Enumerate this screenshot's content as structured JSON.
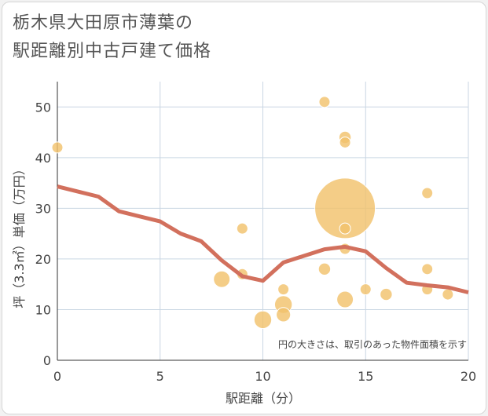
{
  "title_lines": [
    "栃木県大田原市薄葉の",
    "駅距離別中古戸建て価格"
  ],
  "chart_data": {
    "type": "scatter",
    "title": "栃木県大田原市薄葉の駅距離別中古戸建て価格",
    "xlabel": "駅距離（分）",
    "ylabel": "坪（3.3㎡）単価（万円）",
    "xlim": [
      0,
      20
    ],
    "ylim": [
      0,
      55
    ],
    "x_ticks": [
      0,
      5,
      10,
      15,
      20
    ],
    "y_ticks": [
      0,
      10,
      20,
      30,
      40,
      50
    ],
    "grid": true,
    "annotation": "円の大きさは、取引のあった物件面積を示す",
    "colors": {
      "points": "#f2c26d",
      "trend": "#d2705d",
      "grid": "#c9d6e3",
      "axis_text": "#444444"
    },
    "points": [
      {
        "x": 0,
        "y": 42,
        "size": 1
      },
      {
        "x": 8,
        "y": 16,
        "size": 1.5
      },
      {
        "x": 9,
        "y": 26,
        "size": 1
      },
      {
        "x": 9,
        "y": 17,
        "size": 1
      },
      {
        "x": 10,
        "y": 8,
        "size": 1.6
      },
      {
        "x": 11,
        "y": 14,
        "size": 1
      },
      {
        "x": 11,
        "y": 11,
        "size": 1.6
      },
      {
        "x": 11,
        "y": 9,
        "size": 1.3
      },
      {
        "x": 13,
        "y": 51,
        "size": 1
      },
      {
        "x": 13,
        "y": 18,
        "size": 1.1
      },
      {
        "x": 14,
        "y": 44,
        "size": 1.1
      },
      {
        "x": 14,
        "y": 43,
        "size": 1
      },
      {
        "x": 14,
        "y": 30,
        "size": 5.5
      },
      {
        "x": 14,
        "y": 26,
        "size": 1
      },
      {
        "x": 14,
        "y": 22,
        "size": 1
      },
      {
        "x": 14,
        "y": 12,
        "size": 1.5
      },
      {
        "x": 15,
        "y": 14,
        "size": 1
      },
      {
        "x": 16,
        "y": 13,
        "size": 1.1
      },
      {
        "x": 18,
        "y": 33,
        "size": 1
      },
      {
        "x": 18,
        "y": 18,
        "size": 1
      },
      {
        "x": 18,
        "y": 14,
        "size": 1
      },
      {
        "x": 19,
        "y": 13,
        "size": 1
      }
    ],
    "trend_line": {
      "x": [
        0,
        1,
        2,
        3,
        4,
        5,
        6,
        7,
        8,
        9,
        10,
        11,
        12,
        13,
        14,
        15,
        16,
        17,
        18,
        19,
        20
      ],
      "y": [
        34.3,
        33.3,
        32.3,
        29.4,
        28.4,
        27.4,
        25.0,
        23.5,
        19.7,
        16.6,
        15.7,
        19.3,
        20.6,
        21.9,
        22.4,
        21.5,
        18.2,
        15.3,
        14.8,
        14.4,
        13.4
      ]
    }
  }
}
